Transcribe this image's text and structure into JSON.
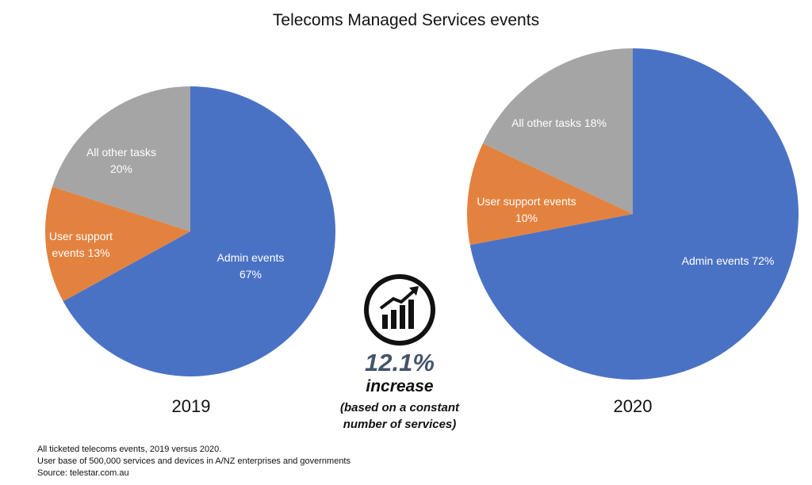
{
  "title": "Telecoms Managed Services events",
  "chart_data": [
    {
      "type": "pie",
      "title": "2019",
      "slices": [
        {
          "name": "Admin events",
          "value": 67,
          "color": "#4a72c4",
          "label_lines": [
            "Admin events",
            "67%"
          ]
        },
        {
          "name": "User support events",
          "value": 13,
          "color": "#e3823f",
          "label_lines": [
            "User support",
            "events 13%"
          ]
        },
        {
          "name": "All other tasks",
          "value": 20,
          "color": "#a5a5a5",
          "label_lines": [
            "All other tasks",
            "20%"
          ]
        }
      ]
    },
    {
      "type": "pie",
      "title": "2020",
      "slices": [
        {
          "name": "Admin events",
          "value": 72,
          "color": "#4a72c4",
          "label_lines": [
            "Admin events 72%"
          ]
        },
        {
          "name": "User support events",
          "value": 10,
          "color": "#e3823f",
          "label_lines": [
            "User support events",
            "10%"
          ]
        },
        {
          "name": "All other tasks",
          "value": 18,
          "color": "#a5a5a5",
          "label_lines": [
            "All other tasks 18%"
          ]
        }
      ]
    }
  ],
  "center": {
    "icon": "growth-chart-icon",
    "value": "12.1%",
    "word": "increase",
    "note_line1": "(based on a constant",
    "note_line2": "number of services)"
  },
  "footer": {
    "line1": "All ticketed telecoms events, 2019 versus 2020.",
    "line2": "User base of 500,000 services and devices in A/NZ enterprises and governments",
    "line3": "Source: telestar.com.au"
  }
}
